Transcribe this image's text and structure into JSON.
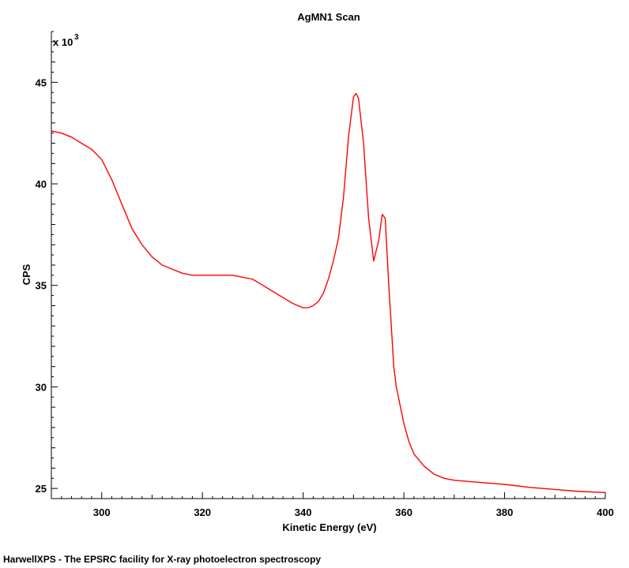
{
  "chart_data": {
    "type": "line",
    "title": "AgMN1 Scan",
    "xlabel": "Kinetic Energy (eV)",
    "ylabel": "CPS",
    "y_multiplier_label": "x 10",
    "y_multiplier_exp": "3",
    "xlim": [
      290,
      400
    ],
    "ylim": [
      24.5,
      47.5
    ],
    "x_ticks": [
      "300",
      "320",
      "340",
      "360",
      "380",
      "400"
    ],
    "y_ticks": [
      "25",
      "30",
      "35",
      "40",
      "45"
    ],
    "grid": false,
    "series": [
      {
        "color": "#ff0000",
        "x": [
          290,
          292,
          294,
          296,
          298,
          300,
          302,
          304,
          306,
          308,
          310,
          312,
          314,
          316,
          318,
          320,
          322,
          324,
          326,
          328,
          330,
          332,
          334,
          336,
          338,
          340,
          341,
          342,
          343,
          344,
          345,
          346,
          347,
          348,
          349,
          350,
          350.5,
          351,
          352,
          353,
          354,
          355,
          355.7,
          356.3,
          357,
          357.5,
          358,
          358.5,
          359,
          359.5,
          360,
          361,
          362,
          364,
          366,
          368,
          370,
          375,
          380,
          385,
          390,
          395,
          400
        ],
        "y": [
          42.6,
          42.5,
          42.3,
          42.0,
          41.7,
          41.2,
          40.2,
          39.0,
          37.8,
          37.0,
          36.4,
          36.0,
          35.8,
          35.6,
          35.5,
          35.5,
          35.5,
          35.5,
          35.5,
          35.4,
          35.3,
          35.0,
          34.7,
          34.4,
          34.1,
          33.9,
          33.9,
          34.0,
          34.2,
          34.6,
          35.3,
          36.2,
          37.3,
          39.3,
          42.3,
          44.3,
          44.45,
          44.2,
          42.0,
          38.3,
          36.2,
          37.2,
          38.5,
          38.3,
          35.0,
          33.0,
          31.0,
          30.0,
          29.4,
          28.8,
          28.2,
          27.3,
          26.7,
          26.1,
          25.7,
          25.5,
          25.4,
          25.3,
          25.2,
          25.05,
          24.95,
          24.85,
          24.8
        ]
      }
    ]
  },
  "footer": "HarwellXPS - The EPSRC facility for X-ray photoelectron spectroscopy"
}
